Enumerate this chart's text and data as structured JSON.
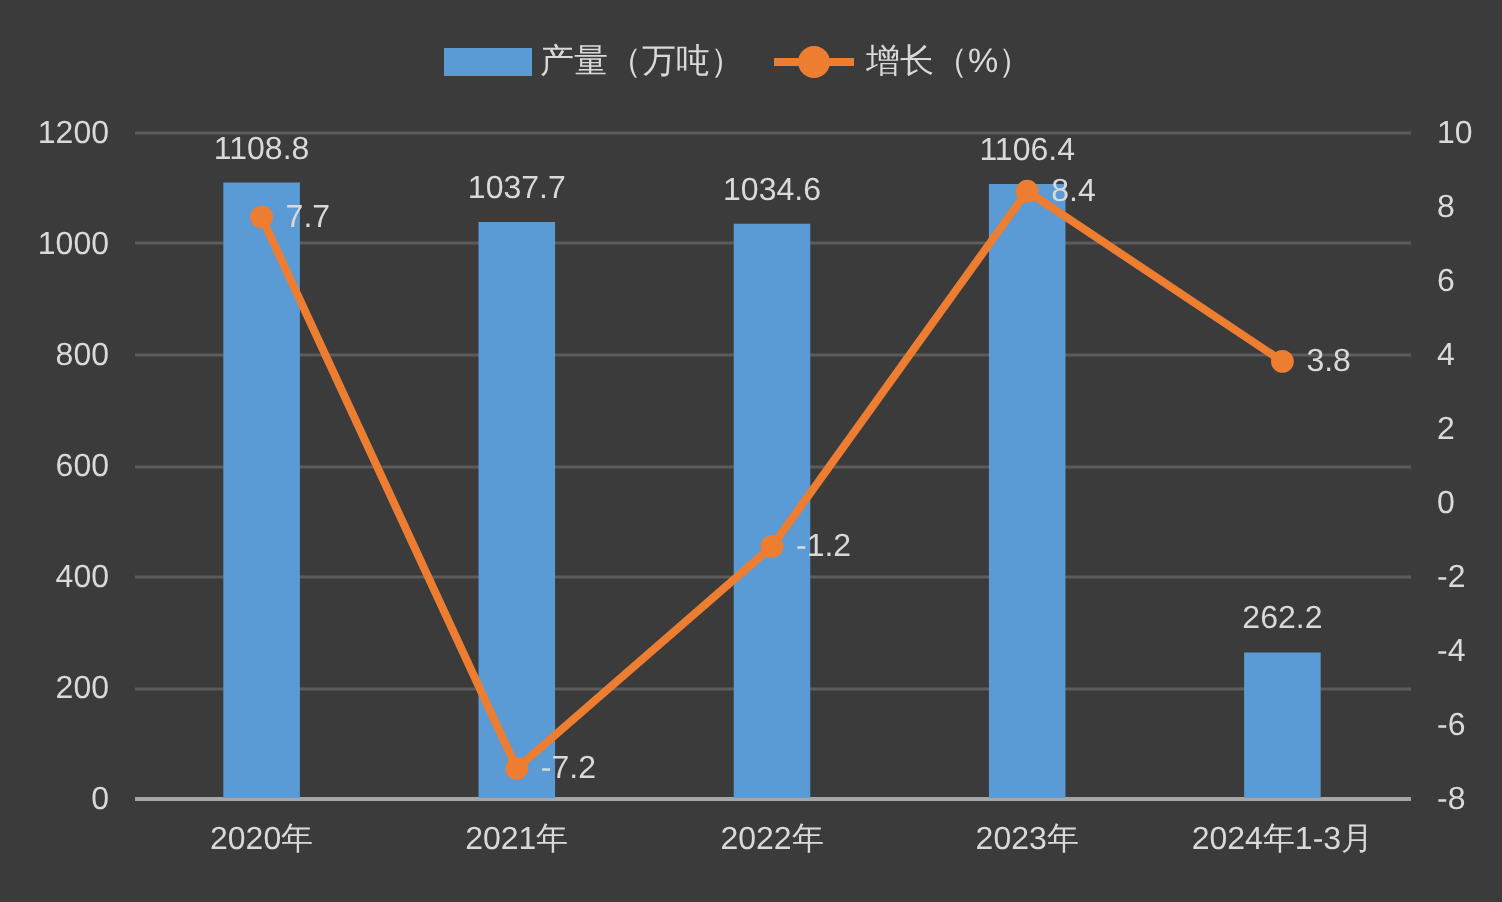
{
  "chart_data": {
    "type": "bar",
    "categories": [
      "2020年",
      "2021年",
      "2022年",
      "2023年",
      "2024年1-3月"
    ],
    "series": [
      {
        "name": "产量（万吨）",
        "color": "#5b9bd5",
        "values": [
          1108.8,
          1037.7,
          1034.6,
          1106.4,
          262.2
        ]
      },
      {
        "name": "增长（%）",
        "type": "line",
        "axis": "y2",
        "color": "#ed7d31",
        "values": [
          7.7,
          -7.2,
          -1.2,
          8.4,
          3.8
        ]
      }
    ],
    "ylim": [
      0,
      1200
    ],
    "yticks": [
      0,
      200,
      400,
      600,
      800,
      1000,
      1200
    ],
    "y2lim": [
      -8,
      10
    ],
    "y2ticks": [
      -8,
      -6,
      -4,
      -2,
      0,
      2,
      4,
      6,
      8,
      10
    ],
    "grid": "y",
    "legend": "top",
    "data_labels": true,
    "marker": "circle",
    "line_style": "solid"
  }
}
